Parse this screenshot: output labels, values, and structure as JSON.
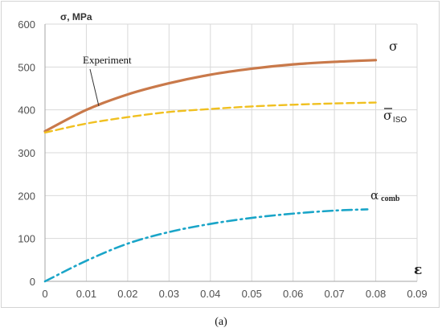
{
  "caption": "(a)",
  "chart_data": {
    "type": "line",
    "ylabel": "σ, MPa",
    "xlabel": "ε",
    "xlim": [
      0,
      0.09
    ],
    "ylim": [
      0,
      600
    ],
    "xticks": [
      "0",
      "0.01",
      "0.02",
      "0.03",
      "0.04",
      "0.05",
      "0.06",
      "0.07",
      "0.08",
      "0.09"
    ],
    "yticks": [
      "0",
      "100",
      "200",
      "300",
      "400",
      "500",
      "600"
    ],
    "grid": true,
    "annotation": "Experiment",
    "series": [
      {
        "name": "σ",
        "color": "#c9794a",
        "style": "solid",
        "x": [
          0,
          0.01,
          0.02,
          0.03,
          0.04,
          0.05,
          0.06,
          0.07,
          0.08
        ],
        "y": [
          350,
          400,
          436,
          462,
          482,
          496,
          506,
          512,
          516
        ]
      },
      {
        "name": "σ̄ISO",
        "name_main": "σ",
        "name_sub": "ISO",
        "color": "#f0c020",
        "style": "dashed",
        "x": [
          0,
          0.01,
          0.02,
          0.03,
          0.04,
          0.05,
          0.06,
          0.07,
          0.08
        ],
        "y": [
          347,
          368,
          383,
          395,
          402,
          408,
          412,
          415,
          417
        ]
      },
      {
        "name": "α comb",
        "name_main": "α",
        "name_sub": "comb",
        "color": "#1aa5c8",
        "style": "dashdot",
        "x": [
          0,
          0.01,
          0.02,
          0.03,
          0.04,
          0.05,
          0.06,
          0.07,
          0.078
        ],
        "y": [
          0,
          48,
          88,
          115,
          134,
          148,
          158,
          165,
          168
        ]
      }
    ]
  }
}
